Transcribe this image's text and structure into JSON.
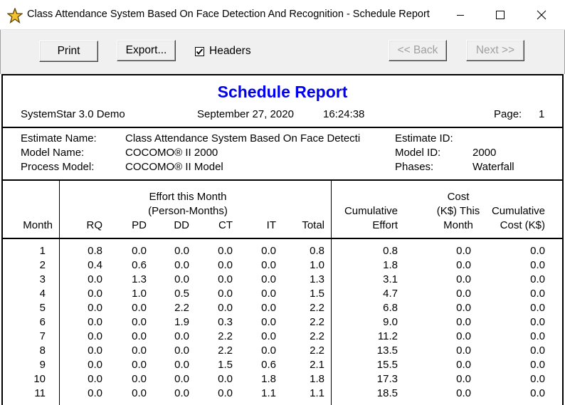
{
  "window": {
    "title": "Class Attendance System Based On Face Detection And Recognition - Schedule Report"
  },
  "toolbar": {
    "print_label": "Print",
    "export_label": "Export...",
    "headers_label": "Headers",
    "headers_checked": true,
    "back_label": "<< Back",
    "next_label": "Next >>"
  },
  "report": {
    "title": "Schedule Report",
    "product": "SystemStar 3.0 Demo",
    "date": "September 27, 2020",
    "time": "16:24:38",
    "page_label": "Page:",
    "page_number": "1",
    "estimate_name_label": "Estimate Name:",
    "estimate_name_value": "Class Attendance System Based On Face Detecti",
    "estimate_id_label": "Estimate ID:",
    "estimate_id_value": "",
    "model_name_label": "Model Name:",
    "model_name_value": "COCOMO® II 2000",
    "model_id_label": "Model ID:",
    "model_id_value": "2000",
    "process_model_label": "Process Model:",
    "process_model_value": "COCOMO® II Model",
    "phases_label": "Phases:",
    "phases_value": "Waterfall"
  },
  "table": {
    "effort_header_line1": "Effort this Month",
    "effort_header_line2": "(Person-Months)",
    "cost_header_line1": "Cost",
    "cost_header_line2": "(K$) This",
    "cost_header_line3": "Month",
    "cum_effort_line1": "Cumulative",
    "cum_effort_line2": "Effort",
    "cum_cost_line1": "Cumulative",
    "cum_cost_line2": "Cost (K$)",
    "columns": [
      "Month",
      "RQ",
      "PD",
      "DD",
      "CT",
      "IT",
      "Total"
    ],
    "rows": [
      [
        "1",
        "0.8",
        "0.0",
        "0.0",
        "0.0",
        "0.0",
        "0.8",
        "0.8",
        "0.0",
        "0.0"
      ],
      [
        "2",
        "0.4",
        "0.6",
        "0.0",
        "0.0",
        "0.0",
        "1.0",
        "1.8",
        "0.0",
        "0.0"
      ],
      [
        "3",
        "0.0",
        "1.3",
        "0.0",
        "0.0",
        "0.0",
        "1.3",
        "3.1",
        "0.0",
        "0.0"
      ],
      [
        "4",
        "0.0",
        "1.0",
        "0.5",
        "0.0",
        "0.0",
        "1.5",
        "4.7",
        "0.0",
        "0.0"
      ],
      [
        "5",
        "0.0",
        "0.0",
        "2.2",
        "0.0",
        "0.0",
        "2.2",
        "6.8",
        "0.0",
        "0.0"
      ],
      [
        "6",
        "0.0",
        "0.0",
        "1.9",
        "0.3",
        "0.0",
        "2.2",
        "9.0",
        "0.0",
        "0.0"
      ],
      [
        "7",
        "0.0",
        "0.0",
        "0.0",
        "2.2",
        "0.0",
        "2.2",
        "11.2",
        "0.0",
        "0.0"
      ],
      [
        "8",
        "0.0",
        "0.0",
        "0.0",
        "2.2",
        "0.0",
        "2.2",
        "13.5",
        "0.0",
        "0.0"
      ],
      [
        "9",
        "0.0",
        "0.0",
        "0.0",
        "1.5",
        "0.6",
        "2.1",
        "15.5",
        "0.0",
        "0.0"
      ],
      [
        "10",
        "0.0",
        "0.0",
        "0.0",
        "0.0",
        "1.8",
        "1.8",
        "17.3",
        "0.0",
        "0.0"
      ],
      [
        "11",
        "0.0",
        "0.0",
        "0.0",
        "0.0",
        "1.1",
        "1.1",
        "18.5",
        "0.0",
        "0.0"
      ]
    ]
  },
  "colors": {
    "title_blue": "#0000ee",
    "toolbar_bg": "#f0f0f0",
    "disabled_text": "#a0a0a0"
  },
  "icons": {
    "app": "star-icon",
    "minimize": "minimize-icon",
    "maximize": "maximize-icon",
    "close": "close-icon",
    "check": "checkmark-icon"
  }
}
